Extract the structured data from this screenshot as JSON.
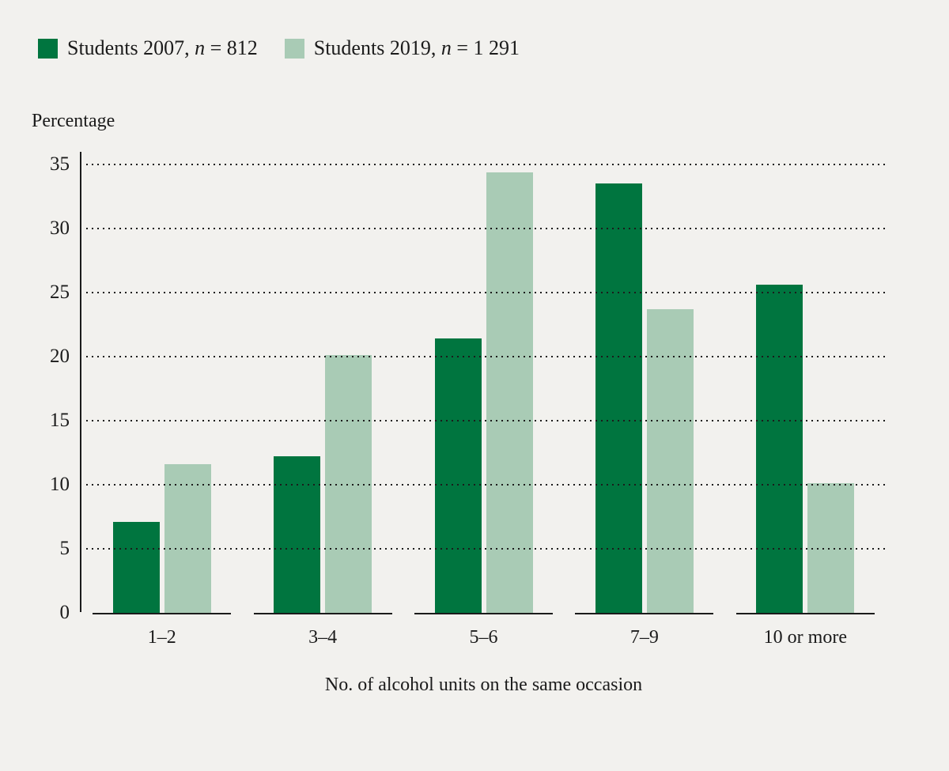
{
  "colors": {
    "background": "#f2f1ee",
    "text": "#1b1b1b",
    "axis": "#1b1b1b",
    "series_2007": "#00753f",
    "series_2019": "#a9cbb5"
  },
  "legend": {
    "items": [
      {
        "prefix": "Students 2007, ",
        "n": "n",
        "suffix": " = 812"
      },
      {
        "prefix": "Students 2019, ",
        "n": "n",
        "suffix": " = 1 291"
      }
    ]
  },
  "chart_data": {
    "type": "bar",
    "title": "",
    "ylabel": "Percentage",
    "xlabel": "No. of alcohol units on the same occasion",
    "categories": [
      "1–2",
      "3–4",
      "5–6",
      "7–9",
      "10 or more"
    ],
    "series": [
      {
        "name": "Students 2007, n = 812",
        "color": "#00753f",
        "values": [
          7.1,
          12.2,
          21.4,
          33.5,
          25.6
        ]
      },
      {
        "name": "Students 2019, n = 1 291",
        "color": "#a9cbb5",
        "values": [
          11.6,
          20.1,
          34.4,
          23.7,
          10.1
        ]
      }
    ],
    "ylim": [
      0,
      35
    ],
    "yticks": [
      0,
      5,
      10,
      15,
      20,
      25,
      30,
      35
    ],
    "grid": "dotted-horizontal",
    "legend_position": "top-left"
  }
}
